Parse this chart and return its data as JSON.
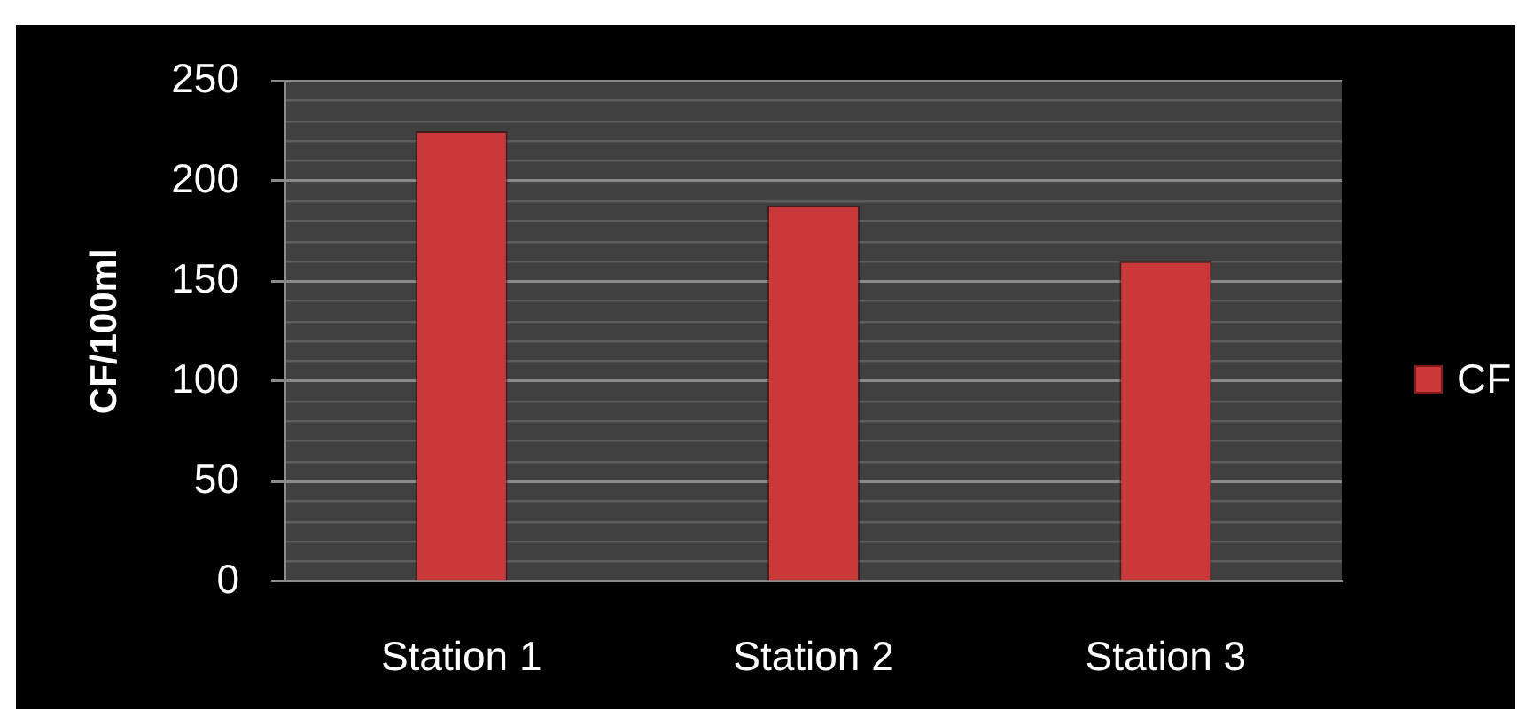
{
  "chart_data": {
    "type": "bar",
    "ylabel": "CF/100ml",
    "categories": [
      "Station 1",
      "Station 2",
      "Station 3"
    ],
    "series": [
      {
        "name": "CF",
        "color": "#c9393a",
        "values": [
          225,
          188,
          160
        ]
      }
    ],
    "ylim": [
      0,
      250
    ],
    "yticks": [
      0,
      {
        "value": 10,
        "label": null
      },
      {
        "value": 20,
        "label": null
      },
      {
        "value": 30,
        "label": null
      },
      {
        "value": 40,
        "label": null
      },
      50,
      {
        "value": 60,
        "label": null
      },
      {
        "value": 70,
        "label": null
      },
      {
        "value": 80,
        "label": null
      },
      {
        "value": 90,
        "label": null
      },
      100,
      {
        "value": 110,
        "label": null
      },
      {
        "value": 120,
        "label": null
      },
      {
        "value": 130,
        "label": null
      },
      {
        "value": 140,
        "label": null
      },
      150,
      {
        "value": 160,
        "label": null
      },
      {
        "value": 170,
        "label": null
      },
      {
        "value": 180,
        "label": null
      },
      {
        "value": 190,
        "label": null
      },
      200,
      {
        "value": 210,
        "label": null
      },
      {
        "value": 220,
        "label": null
      },
      {
        "value": 230,
        "label": null
      },
      {
        "value": 240,
        "label": null
      },
      250
    ],
    "grid": "y",
    "legend": "right"
  }
}
